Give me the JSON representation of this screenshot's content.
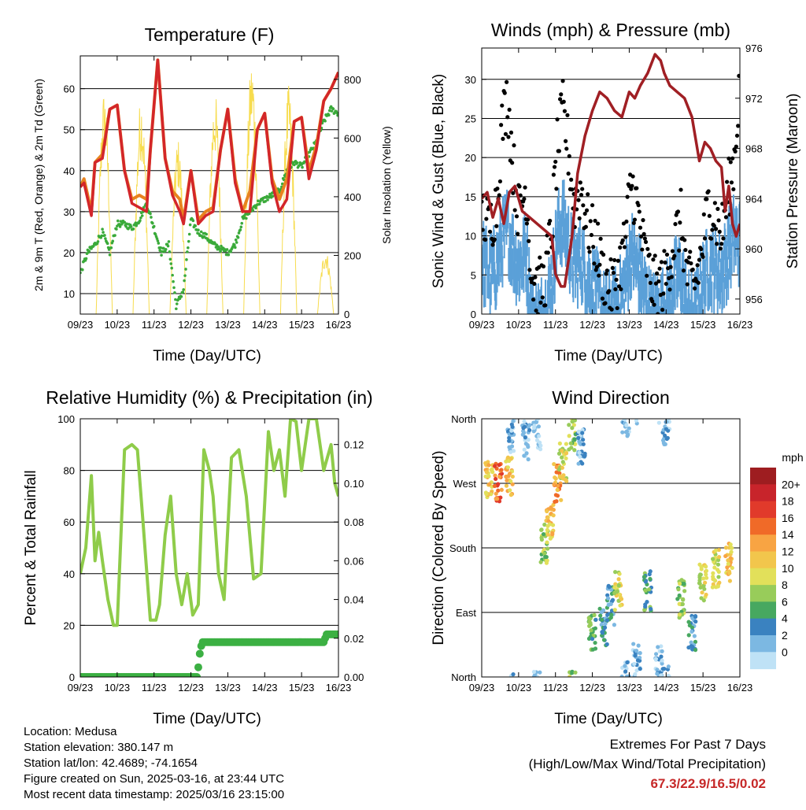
{
  "footer": {
    "location": "Location: Medusa",
    "elevation": "Station elevation: 380.147 m",
    "latlon": "Station lat/lon: 42.4689; -74.1654",
    "created": "Figure created on Sun, 2025-03-16, at 23:44 UTC",
    "recent": "Most recent data timestamp: 2025/03/16 23:15:00",
    "extremes_title": "Extremes For Past 7 Days",
    "extremes_sub": "(High/Low/Max Wind/Total Precipitation)",
    "extremes_values": "67.3/22.9/16.5/0.02"
  },
  "colors": {
    "temp_2m": "#e8831f",
    "temp_9m": "#d3262a",
    "dewpoint": "#3aaa3a",
    "insolation": "#f7dc4e",
    "wind_sonic": "#5ba0d8",
    "wind_gust": "#000000",
    "pressure": "#a01f24",
    "rh": "#8fcc4a",
    "precip": "#3cb043",
    "extremes": "#c62828"
  },
  "chart_data": [
    {
      "id": "temperature",
      "type": "line",
      "title": "Temperature (F)",
      "xlabel": "Time (Day/UTC)",
      "ylabel": "2m & 9m T (Red, Orange) & 2m Td (Green)",
      "ylabel_right": "Solar Insolation (Yellow)",
      "xticks": [
        "09/23",
        "10/23",
        "11/23",
        "12/23",
        "13/23",
        "14/23",
        "15/23",
        "16/23"
      ],
      "xlim": [
        0,
        7
      ],
      "ylim": [
        5,
        68
      ],
      "yticks": [
        10,
        20,
        30,
        40,
        50,
        60
      ],
      "ylim_right": [
        0,
        880
      ],
      "yticks_right": [
        0,
        200,
        400,
        600,
        800
      ],
      "grid": "horizontal",
      "series": [
        {
          "key": "t2m",
          "color": "#e8831f",
          "x": [
            0,
            0.1,
            0.3,
            0.4,
            0.6,
            0.8,
            1.0,
            1.2,
            1.4,
            1.6,
            1.8,
            1.9,
            2.1,
            2.3,
            2.5,
            2.7,
            2.8,
            3.0,
            3.2,
            3.4,
            3.6,
            3.8,
            4.0,
            4.2,
            4.4,
            4.6,
            4.8,
            5.0,
            5.2,
            5.4,
            5.6,
            5.8,
            6.0,
            6.2,
            6.4,
            6.6,
            6.8,
            7.0
          ],
          "y": [
            36,
            38,
            30,
            42,
            44,
            55,
            56,
            40,
            33,
            34,
            33,
            45,
            67,
            43,
            35,
            33,
            28,
            40,
            28,
            30,
            31,
            45,
            55,
            38,
            30,
            35,
            50,
            54,
            38,
            33,
            38,
            52,
            53,
            40,
            46,
            57,
            60,
            64
          ]
        },
        {
          "key": "t9m",
          "color": "#d3262a",
          "x": [
            0,
            0.1,
            0.3,
            0.4,
            0.6,
            0.8,
            1.0,
            1.2,
            1.4,
            1.6,
            1.8,
            1.9,
            2.1,
            2.3,
            2.5,
            2.7,
            2.8,
            3.0,
            3.2,
            3.4,
            3.6,
            3.8,
            4.0,
            4.2,
            4.4,
            4.6,
            4.8,
            5.0,
            5.2,
            5.4,
            5.6,
            5.8,
            6.0,
            6.2,
            6.4,
            6.6,
            6.8,
            7.0
          ],
          "y": [
            36,
            37,
            29,
            42,
            43,
            55,
            56,
            40,
            32,
            31,
            30,
            45,
            67,
            43,
            34,
            30,
            27,
            40,
            27,
            29,
            30,
            45,
            55,
            37,
            30,
            30,
            50,
            54,
            37,
            30,
            33,
            52,
            53,
            38,
            45,
            57,
            60,
            64
          ]
        },
        {
          "key": "td2m",
          "color": "#3aaa3a",
          "x": [
            0,
            0.2,
            0.4,
            0.6,
            0.8,
            1.0,
            1.2,
            1.4,
            1.6,
            1.8,
            2.0,
            2.2,
            2.4,
            2.6,
            2.8,
            3.0,
            3.2,
            3.4,
            3.6,
            3.8,
            4.0,
            4.2,
            4.4,
            4.6,
            4.8,
            5.0,
            5.2,
            5.4,
            5.6,
            5.8,
            6.0,
            6.2,
            6.4,
            6.6,
            6.8,
            7.0
          ],
          "y": [
            15,
            20,
            22,
            25,
            20,
            27,
            27,
            26,
            28,
            32,
            26,
            20,
            22,
            7,
            11,
            28,
            25,
            24,
            22,
            21,
            20,
            22,
            28,
            30,
            32,
            33,
            34,
            35,
            40,
            42,
            41,
            44,
            47,
            52,
            55,
            54
          ]
        },
        {
          "key": "insolation",
          "color": "#f7dc4e",
          "axis": "right",
          "peaks": [
            0.65,
            1.65,
            2.65,
            3.65,
            4.65,
            5.65,
            6.65
          ],
          "peak_values": [
            770,
            750,
            600,
            760,
            870,
            780,
            220
          ]
        }
      ]
    },
    {
      "id": "winds",
      "type": "scatter",
      "title": "Winds (mph) & Pressure (mb)",
      "xlabel": "Time (Day/UTC)",
      "ylabel": "Sonic Wind & Gust (Blue, Black)",
      "ylabel_right": "Station Pressure (Maroon)",
      "xticks": [
        "09/23",
        "10/23",
        "11/23",
        "12/23",
        "13/23",
        "14/23",
        "15/23",
        "16/23"
      ],
      "xlim": [
        0,
        7
      ],
      "ylim": [
        0,
        34
      ],
      "yticks": [
        0,
        5,
        10,
        15,
        20,
        25,
        30
      ],
      "ylim_right": [
        954.8,
        976
      ],
      "yticks_right": [
        956,
        960,
        964,
        968,
        972,
        976
      ],
      "grid": "horizontal",
      "series": [
        {
          "key": "gust",
          "color": "#000000",
          "x": [
            0.0,
            0.2,
            0.4,
            0.55,
            0.7,
            0.85,
            1.0,
            1.2,
            1.35,
            1.5,
            1.7,
            1.9,
            2.05,
            2.2,
            2.35,
            2.5,
            2.7,
            2.9,
            3.1,
            3.3,
            3.5,
            3.7,
            3.9,
            4.05,
            4.2,
            4.4,
            4.6,
            4.8,
            5.0,
            5.2,
            5.4,
            5.6,
            5.8,
            6.0,
            6.15,
            6.3,
            6.5,
            6.7,
            6.85,
            7.0
          ],
          "y": [
            13,
            11,
            14,
            24,
            28,
            19,
            13,
            16,
            5,
            3,
            4,
            11,
            21,
            26,
            21,
            14,
            16,
            11,
            9,
            5,
            3,
            5,
            10,
            17,
            14,
            8,
            4,
            3,
            5,
            9,
            12,
            4,
            4,
            9,
            14,
            13,
            10,
            16,
            20,
            30
          ]
        },
        {
          "key": "sonic",
          "color": "#5ba0d8",
          "x": [
            0.0,
            0.2,
            0.4,
            0.55,
            0.7,
            0.85,
            1.0,
            1.2,
            1.35,
            1.5,
            1.7,
            1.9,
            2.05,
            2.2,
            2.35,
            2.5,
            2.7,
            2.9,
            3.1,
            3.3,
            3.5,
            3.7,
            3.9,
            4.05,
            4.2,
            4.4,
            4.6,
            4.8,
            5.0,
            5.2,
            5.4,
            5.6,
            5.8,
            6.0,
            6.15,
            6.3,
            6.5,
            6.7,
            6.85,
            7.0
          ],
          "y": [
            8,
            6,
            7,
            10,
            12,
            9,
            7,
            9,
            1,
            0,
            1,
            5,
            11,
            13,
            10,
            7,
            8,
            5,
            4,
            1,
            1,
            2,
            5,
            9,
            7,
            4,
            1,
            1,
            2,
            5,
            6,
            1,
            1,
            5,
            7,
            7,
            6,
            9,
            11,
            10
          ]
        },
        {
          "key": "pressure",
          "color": "#a01f24",
          "axis": "right",
          "x": [
            0.0,
            0.15,
            0.3,
            0.45,
            0.6,
            0.75,
            0.9,
            1.1,
            1.3,
            1.5,
            1.7,
            1.9,
            2.0,
            2.15,
            2.25,
            2.45,
            2.6,
            2.8,
            3.0,
            3.2,
            3.4,
            3.6,
            3.8,
            4.0,
            4.15,
            4.3,
            4.5,
            4.7,
            4.85,
            4.95,
            5.1,
            5.3,
            5.5,
            5.7,
            5.9,
            6.05,
            6.2,
            6.35,
            6.5,
            6.6,
            6.7,
            6.8,
            6.9,
            7.0
          ],
          "y": [
            964,
            964.5,
            962.5,
            964,
            962,
            964.5,
            965,
            963,
            962.5,
            962,
            961.5,
            961,
            958,
            957,
            957,
            961,
            966,
            969,
            971,
            972.5,
            972,
            971,
            970.5,
            972.5,
            972,
            973,
            974,
            975.5,
            975,
            974,
            973,
            972.5,
            972,
            970.5,
            967,
            968.5,
            968,
            967,
            966.5,
            963,
            965,
            962,
            961,
            962
          ]
        }
      ]
    },
    {
      "id": "humidity",
      "type": "line",
      "title": "Relative Humidity (%) & Precipitation (in)",
      "xlabel": "Time (Day/UTC)",
      "ylabel": "Percent & Total Rainfall",
      "xticks": [
        "09/23",
        "10/23",
        "11/23",
        "12/23",
        "13/23",
        "14/23",
        "15/23",
        "16/23"
      ],
      "xlim": [
        0,
        7
      ],
      "ylim": [
        0,
        100
      ],
      "yticks": [
        0,
        20,
        40,
        60,
        80,
        100
      ],
      "ylim_right": [
        0,
        0.1333
      ],
      "yticks_right": [
        "0.00",
        "0.02",
        "0.04",
        "0.06",
        "0.08",
        "0.10",
        "0.12"
      ],
      "grid": "horizontal",
      "series": [
        {
          "key": "rh",
          "color": "#8fcc4a",
          "x": [
            0,
            0.15,
            0.3,
            0.4,
            0.5,
            0.6,
            0.75,
            0.9,
            1.0,
            1.2,
            1.4,
            1.55,
            1.7,
            1.9,
            2.05,
            2.15,
            2.3,
            2.45,
            2.6,
            2.75,
            2.9,
            3.05,
            3.2,
            3.35,
            3.5,
            3.6,
            3.75,
            3.9,
            4.1,
            4.3,
            4.5,
            4.7,
            4.9,
            5.1,
            5.25,
            5.4,
            5.55,
            5.7,
            5.85,
            6.0,
            6.2,
            6.4,
            6.6,
            6.8,
            6.9,
            7.0
          ],
          "y": [
            40,
            50,
            78,
            45,
            56,
            45,
            30,
            20,
            20,
            88,
            90,
            88,
            60,
            22,
            22,
            28,
            55,
            70,
            40,
            28,
            40,
            24,
            28,
            88,
            80,
            70,
            40,
            30,
            85,
            88,
            70,
            38,
            40,
            95,
            80,
            88,
            70,
            100,
            99,
            80,
            100,
            100,
            80,
            90,
            75,
            70
          ]
        },
        {
          "key": "precip",
          "color": "#3cb043",
          "axis": "right",
          "x": [
            0,
            3.18,
            3.22,
            3.3,
            6.6,
            6.68,
            7.0
          ],
          "y": [
            0,
            0,
            0.01,
            0.018,
            0.018,
            0.022,
            0.022
          ]
        }
      ]
    },
    {
      "id": "wind_direction",
      "type": "scatter",
      "title": "Wind Direction",
      "xlabel": "Time (Day/UTC)",
      "ylabel": "Direction (Colored By Speed)",
      "xticks": [
        "09/23",
        "10/23",
        "11/23",
        "12/23",
        "13/23",
        "14/23",
        "15/23",
        "16/23"
      ],
      "xlim": [
        0,
        7
      ],
      "ylim": [
        0,
        360
      ],
      "ytick_values": [
        0,
        90,
        180,
        270,
        360
      ],
      "ytick_labels": [
        "North",
        "East",
        "South",
        "West",
        "North"
      ],
      "grid": "horizontal",
      "legend": {
        "position": "right",
        "title": "mph",
        "labels": [
          "20+",
          "18",
          "16",
          "14",
          "12",
          "10",
          "8",
          "6",
          "4",
          "2",
          "0"
        ],
        "colors": [
          "#9e1d20",
          "#c8242b",
          "#e13a2b",
          "#f06a28",
          "#f8a443",
          "#f2c64c",
          "#e2e05a",
          "#98cc5a",
          "#47a860",
          "#3a82c0",
          "#7cb8e2",
          "#bfe2f6"
        ]
      },
      "clusters": [
        {
          "x": 0.2,
          "dir": 275,
          "speed": 12
        },
        {
          "x": 0.45,
          "dir": 270,
          "speed": 16
        },
        {
          "x": 0.75,
          "dir": 280,
          "speed": 12
        },
        {
          "x": 0.8,
          "dir": 340,
          "speed": 2
        },
        {
          "x": 1.2,
          "dir": 330,
          "speed": 2
        },
        {
          "x": 1.5,
          "dir": 345,
          "speed": 1
        },
        {
          "x": 1.7,
          "dir": 185,
          "speed": 8
        },
        {
          "x": 1.85,
          "dir": 220,
          "speed": 12
        },
        {
          "x": 2.05,
          "dir": 270,
          "speed": 14
        },
        {
          "x": 2.2,
          "dir": 300,
          "speed": 10
        },
        {
          "x": 2.45,
          "dir": 340,
          "speed": 8
        },
        {
          "x": 2.7,
          "dir": 320,
          "speed": 2
        },
        {
          "x": 3.0,
          "dir": 60,
          "speed": 6
        },
        {
          "x": 3.3,
          "dir": 70,
          "speed": 4
        },
        {
          "x": 3.5,
          "dir": 100,
          "speed": 3
        },
        {
          "x": 3.7,
          "dir": 120,
          "speed": 10
        },
        {
          "x": 3.9,
          "dir": 360,
          "speed": 1
        },
        {
          "x": 4.2,
          "dir": 20,
          "speed": 2
        },
        {
          "x": 4.5,
          "dir": 120,
          "speed": 6
        },
        {
          "x": 4.8,
          "dir": 20,
          "speed": 2
        },
        {
          "x": 5.0,
          "dir": 350,
          "speed": 2
        },
        {
          "x": 5.4,
          "dir": 110,
          "speed": 8
        },
        {
          "x": 5.7,
          "dir": 60,
          "speed": 4
        },
        {
          "x": 6.0,
          "dir": 130,
          "speed": 10
        },
        {
          "x": 6.35,
          "dir": 150,
          "speed": 10
        },
        {
          "x": 6.7,
          "dir": 160,
          "speed": 12
        }
      ]
    }
  ]
}
